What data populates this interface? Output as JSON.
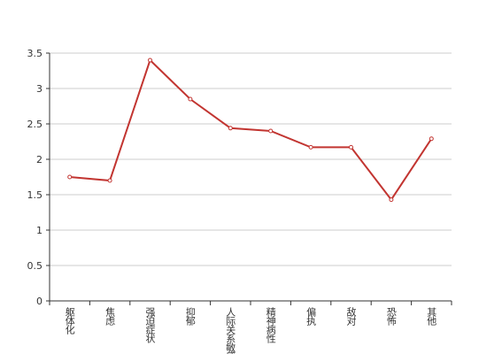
{
  "chart_data": {
    "type": "line",
    "categories": [
      "躯体化",
      "焦虑",
      "强迫症状",
      "抑郁",
      "人际关系敏感",
      "精神病性",
      "偏执",
      "敌对",
      "恐怖",
      "其他"
    ],
    "values": [
      1.75,
      1.7,
      3.4,
      2.85,
      2.44,
      2.4,
      2.17,
      2.17,
      1.43,
      2.29
    ],
    "color": "#c23531",
    "ylim": [
      0,
      3.5
    ],
    "yticks": [
      0,
      0.5,
      1,
      1.5,
      2,
      2.5,
      3,
      3.5
    ],
    "grid": true
  }
}
